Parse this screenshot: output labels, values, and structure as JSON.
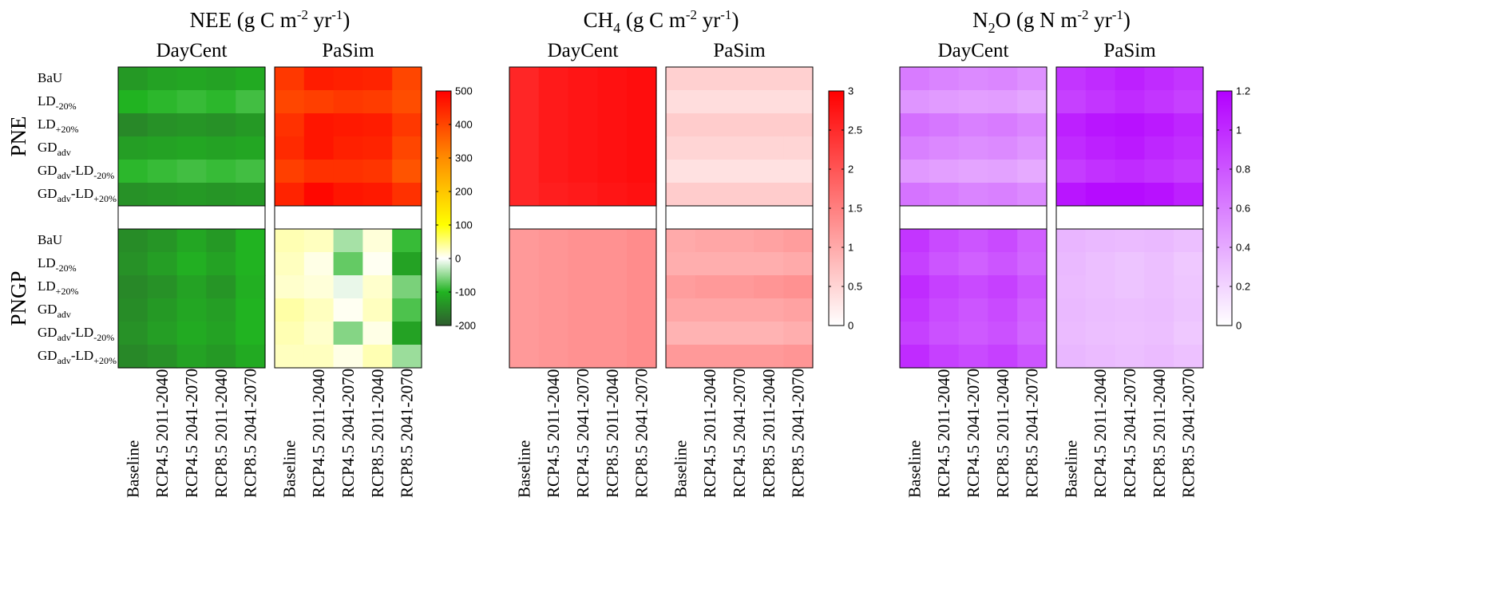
{
  "chart_data": [
    {
      "type": "heatmap",
      "title": "NEE (g C m-2 yr-1)",
      "title_parts": {
        "base": "NEE (g C m",
        "sup1": "-2",
        "mid": " yr",
        "sup2": "-1",
        "end": ")"
      },
      "models": [
        "DayCent",
        "PaSim"
      ],
      "sites": [
        "PNE",
        "PNGP"
      ],
      "rows": [
        {
          "base": "BaU",
          "sub": ""
        },
        {
          "base": "LD",
          "sub": "-20%"
        },
        {
          "base": "LD",
          "sub": "+20%"
        },
        {
          "base": "GD",
          "sub": "adv"
        },
        {
          "base": "GDadv-LD",
          "sub": "-20%"
        },
        {
          "base": "GDadv-LD",
          "sub": "+20%"
        }
      ],
      "columns": [
        "Baseline",
        "RCP4.5 2011-2040",
        "RCP4.5 2041-2070",
        "RCP8.5 2011-2040",
        "RCP8.5 2041-2070"
      ],
      "colorbar": {
        "min": -200,
        "max": 500,
        "ticks": [
          -200,
          -100,
          0,
          100,
          200,
          300,
          400,
          500
        ],
        "colors": [
          "#2f5d2f",
          "#21b321",
          "#ffffff",
          "#ffff00",
          "#ff8c00",
          "#ff0000"
        ],
        "stops": [
          -200,
          -100,
          0,
          100,
          300,
          500
        ]
      },
      "values": {
        "PNE": {
          "DayCent": [
            [
              -130,
              -120,
              -115,
              -120,
              -110
            ],
            [
              -100,
              -95,
              -90,
              -95,
              -85
            ],
            [
              -150,
              -140,
              -135,
              -140,
              -130
            ],
            [
              -125,
              -120,
              -115,
              -120,
              -115
            ],
            [
              -95,
              -90,
              -85,
              -90,
              -85
            ],
            [
              -140,
              -135,
              -130,
              -135,
              -130
            ]
          ],
          "PaSim": [
            [
              420,
              460,
              455,
              450,
              400
            ],
            [
              400,
              410,
              420,
              415,
              390
            ],
            [
              430,
              470,
              465,
              460,
              420
            ],
            [
              440,
              470,
              455,
              450,
              400
            ],
            [
              410,
              430,
              430,
              425,
              380
            ],
            [
              450,
              490,
              470,
              465,
              430
            ]
          ]
        },
        "PNGP": {
          "DayCent": [
            [
              -145,
              -135,
              -115,
              -130,
              -100
            ],
            [
              -140,
              -125,
              -105,
              -120,
              -100
            ],
            [
              -150,
              -140,
              -120,
              -135,
              -105
            ],
            [
              -145,
              -130,
              -115,
              -125,
              -100
            ],
            [
              -140,
              -125,
              -110,
              -120,
              -100
            ],
            [
              -150,
              -140,
              -120,
              -130,
              -110
            ]
          ],
          "PaSim": [
            [
              30,
              25,
              -40,
              15,
              -90
            ],
            [
              25,
              10,
              -70,
              5,
              -120
            ],
            [
              20,
              15,
              -10,
              20,
              -60
            ],
            [
              35,
              25,
              5,
              25,
              -80
            ],
            [
              30,
              20,
              -55,
              10,
              -120
            ],
            [
              25,
              25,
              10,
              30,
              -45
            ]
          ]
        }
      }
    },
    {
      "type": "heatmap",
      "title": "CH4 (g C m-2 yr-1)",
      "title_parts": {
        "base": "CH",
        "sub0": "4",
        "base2": " (g C m",
        "sup1": "-2",
        "mid": " yr",
        "sup2": "-1",
        "end": ")"
      },
      "models": [
        "DayCent",
        "PaSim"
      ],
      "sites": [
        "PNE",
        "PNGP"
      ],
      "columns": [
        "Baseline",
        "RCP4.5 2011-2040",
        "RCP4.5 2041-2070",
        "RCP8.5 2011-2040",
        "RCP8.5 2041-2070"
      ],
      "colorbar": {
        "min": 0,
        "max": 3,
        "ticks": [
          0,
          0.5,
          1,
          1.5,
          2,
          2.5,
          3
        ],
        "colors": [
          "#ffffff",
          "#ff0000"
        ],
        "stops": [
          0,
          3
        ]
      },
      "values": {
        "PNE": {
          "DayCent": [
            [
              2.55,
              2.7,
              2.75,
              2.8,
              2.85
            ],
            [
              2.55,
              2.7,
              2.75,
              2.8,
              2.85
            ],
            [
              2.55,
              2.7,
              2.75,
              2.8,
              2.85
            ],
            [
              2.55,
              2.7,
              2.75,
              2.8,
              2.85
            ],
            [
              2.55,
              2.7,
              2.75,
              2.8,
              2.85
            ],
            [
              2.55,
              2.65,
              2.7,
              2.75,
              2.8
            ]
          ],
          "PaSim": [
            [
              0.55,
              0.55,
              0.55,
              0.55,
              0.55
            ],
            [
              0.4,
              0.4,
              0.4,
              0.4,
              0.4
            ],
            [
              0.6,
              0.6,
              0.6,
              0.6,
              0.6
            ],
            [
              0.5,
              0.5,
              0.5,
              0.5,
              0.5
            ],
            [
              0.35,
              0.35,
              0.35,
              0.35,
              0.35
            ],
            [
              0.6,
              0.6,
              0.6,
              0.6,
              0.6
            ]
          ]
        },
        "PNGP": {
          "DayCent": [
            [
              1.2,
              1.25,
              1.3,
              1.3,
              1.35
            ],
            [
              1.2,
              1.25,
              1.3,
              1.3,
              1.35
            ],
            [
              1.2,
              1.25,
              1.3,
              1.3,
              1.35
            ],
            [
              1.2,
              1.25,
              1.3,
              1.3,
              1.35
            ],
            [
              1.2,
              1.25,
              1.3,
              1.3,
              1.35
            ],
            [
              1.2,
              1.25,
              1.3,
              1.3,
              1.35
            ]
          ],
          "PaSim": [
            [
              1.0,
              1.05,
              1.05,
              1.1,
              1.15
            ],
            [
              0.95,
              0.95,
              0.95,
              0.95,
              1.0
            ],
            [
              1.15,
              1.2,
              1.2,
              1.25,
              1.3
            ],
            [
              1.05,
              1.05,
              1.05,
              1.05,
              1.1
            ],
            [
              0.9,
              0.9,
              0.9,
              0.9,
              0.95
            ],
            [
              1.2,
              1.2,
              1.2,
              1.2,
              1.25
            ]
          ]
        }
      }
    },
    {
      "type": "heatmap",
      "title": "N2O (g N m-2 yr-1)",
      "title_parts": {
        "base": "N",
        "sub0": "2",
        "base2": "O (g N m",
        "sup1": "-2",
        "mid": " yr",
        "sup2": "-1",
        "end": ")"
      },
      "models": [
        "DayCent",
        "PaSim"
      ],
      "sites": [
        "PNE",
        "PNGP"
      ],
      "columns": [
        "Baseline",
        "RCP4.5 2011-2040",
        "RCP4.5 2041-2070",
        "RCP8.5 2011-2040",
        "RCP8.5 2041-2070"
      ],
      "colorbar": {
        "min": 0,
        "max": 1.2,
        "ticks": [
          0,
          0.2,
          0.4,
          0.6,
          0.8,
          1,
          1.2
        ],
        "colors": [
          "#ffffff",
          "#b300ff"
        ],
        "stops": [
          0,
          1.2
        ]
      },
      "values": {
        "PNE": {
          "DayCent": [
            [
              0.62,
              0.58,
              0.55,
              0.57,
              0.52
            ],
            [
              0.5,
              0.47,
              0.45,
              0.46,
              0.42
            ],
            [
              0.68,
              0.64,
              0.6,
              0.62,
              0.57
            ],
            [
              0.6,
              0.56,
              0.53,
              0.55,
              0.5
            ],
            [
              0.48,
              0.45,
              0.43,
              0.44,
              0.4
            ],
            [
              0.66,
              0.62,
              0.58,
              0.6,
              0.55
            ]
          ],
          "PaSim": [
            [
              0.95,
              1.0,
              1.05,
              1.0,
              0.95
            ],
            [
              0.9,
              0.95,
              1.0,
              0.95,
              0.9
            ],
            [
              1.05,
              1.1,
              1.12,
              1.08,
              1.02
            ],
            [
              1.0,
              1.05,
              1.08,
              1.02,
              0.98
            ],
            [
              0.92,
              0.97,
              1.0,
              0.96,
              0.92
            ],
            [
              1.1,
              1.15,
              1.15,
              1.12,
              1.05
            ]
          ]
        },
        "PNGP": {
          "DayCent": [
            [
              0.95,
              0.85,
              0.8,
              0.85,
              0.75
            ],
            [
              0.9,
              0.8,
              0.75,
              0.8,
              0.72
            ],
            [
              1.0,
              0.9,
              0.85,
              0.9,
              0.8
            ],
            [
              0.95,
              0.85,
              0.8,
              0.85,
              0.75
            ],
            [
              0.9,
              0.82,
              0.78,
              0.82,
              0.72
            ],
            [
              1.0,
              0.9,
              0.85,
              0.9,
              0.8
            ]
          ],
          "PaSim": [
            [
              0.35,
              0.33,
              0.32,
              0.33,
              0.3
            ],
            [
              0.33,
              0.3,
              0.28,
              0.3,
              0.26
            ],
            [
              0.32,
              0.3,
              0.28,
              0.3,
              0.27
            ],
            [
              0.33,
              0.31,
              0.3,
              0.31,
              0.28
            ],
            [
              0.32,
              0.3,
              0.29,
              0.3,
              0.26
            ],
            [
              0.34,
              0.32,
              0.3,
              0.32,
              0.29
            ]
          ]
        }
      }
    }
  ]
}
